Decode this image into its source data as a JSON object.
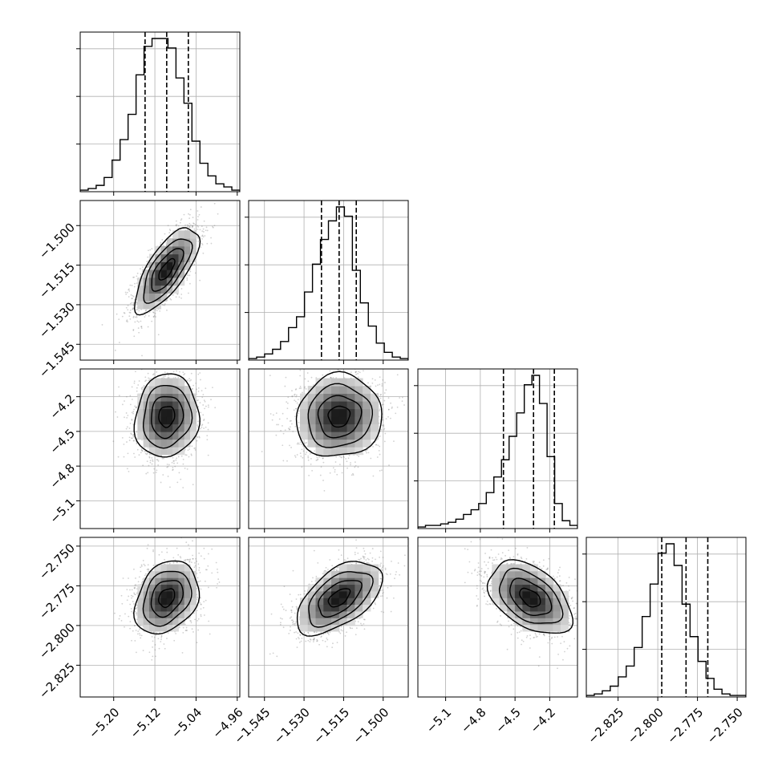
{
  "figure": {
    "kind": "corner plot"
  },
  "colors": {
    "background": "#ffffff",
    "grid": "#b0b0b0",
    "line": "#000000",
    "scatter": "#7a7a7a",
    "density_dark": "#000000"
  },
  "chart_data": {
    "type": "corner",
    "grid": true,
    "parameters": [
      {
        "limits": [
          -5.265,
          -4.955
        ],
        "ticks": [
          "−5.20",
          "−5.12",
          "−5.04",
          "−4.96"
        ],
        "tick_values": [
          -5.2,
          -5.12,
          -5.04,
          -4.96
        ],
        "quantiles": [
          -5.139,
          -5.097,
          -5.055
        ],
        "histogram": {
          "range": [
            -5.265,
            -4.955
          ],
          "counts": [
            1,
            2,
            4,
            9,
            20,
            33,
            49,
            74,
            92,
            97,
            97,
            91,
            72,
            56,
            32,
            18,
            10,
            5,
            3,
            1
          ]
        }
      },
      {
        "limits": [
          -1.551,
          -1.4905
        ],
        "ticks": [
          "−1.545",
          "−1.530",
          "−1.515",
          "−1.500"
        ],
        "tick_values": [
          -1.545,
          -1.53,
          -1.515,
          -1.5
        ],
        "quantiles": [
          -1.5234,
          -1.5167,
          -1.5102
        ],
        "histogram": {
          "range": [
            -1.551,
            -1.4905
          ],
          "counts": [
            1,
            2,
            4,
            7,
            12,
            21,
            28,
            44,
            62,
            78,
            90,
            99,
            93,
            58,
            37,
            22,
            11,
            5,
            2,
            1
          ]
        }
      },
      {
        "limits": [
          -5.34,
          -3.96
        ],
        "ticks": [
          "−5.1",
          "−4.8",
          "−4.5",
          "−4.2"
        ],
        "tick_values": [
          -5.1,
          -4.8,
          -4.5,
          -4.2
        ],
        "quantiles": [
          -4.6,
          -4.34,
          -4.16
        ],
        "histogram": {
          "range": [
            -5.34,
            -3.96
          ],
          "counts": [
            1,
            2,
            2,
            3,
            4,
            6,
            9,
            12,
            16,
            23,
            33,
            44,
            59,
            74,
            92,
            98,
            80,
            46,
            16,
            5,
            2
          ]
        }
      },
      {
        "limits": [
          -2.845,
          -2.7445
        ],
        "ticks": [
          "−2.825",
          "−2.800",
          "−2.775",
          "−2.750"
        ],
        "tick_values": [
          -2.825,
          -2.8,
          -2.775,
          -2.75
        ],
        "quantiles": [
          -2.7975,
          -2.7822,
          -2.7685
        ],
        "histogram": {
          "range": [
            -2.845,
            -2.7445
          ],
          "counts": [
            1,
            2,
            4,
            7,
            13,
            20,
            32,
            52,
            73,
            93,
            99,
            85,
            60,
            39,
            23,
            12,
            5,
            2,
            1,
            1
          ]
        }
      }
    ],
    "pairs": [
      {
        "row": 1,
        "col": 0,
        "mean": [
          -5.097,
          -1.5167
        ],
        "std": [
          0.031,
          0.0081
        ],
        "rho": 0.72
      },
      {
        "row": 2,
        "col": 0,
        "mean": [
          -5.097,
          -4.37
        ],
        "std": [
          0.031,
          0.18
        ],
        "rho": 0.08
      },
      {
        "row": 2,
        "col": 1,
        "mean": [
          -1.5167,
          -4.37
        ],
        "std": [
          0.0081,
          0.18
        ],
        "rho": 0.06
      },
      {
        "row": 3,
        "col": 0,
        "mean": [
          -5.097,
          -2.7825
        ],
        "std": [
          0.031,
          0.0115
        ],
        "rho": 0.28
      },
      {
        "row": 3,
        "col": 1,
        "mean": [
          -1.5167,
          -2.7825
        ],
        "std": [
          0.0081,
          0.0115
        ],
        "rho": 0.55
      },
      {
        "row": 3,
        "col": 2,
        "mean": [
          -4.37,
          -2.7825
        ],
        "std": [
          0.18,
          0.0115
        ],
        "rho": -0.45
      }
    ],
    "contour_levels": [
      0.5,
      1.0,
      1.5,
      2.0
    ],
    "points_per_panel": 1800
  }
}
